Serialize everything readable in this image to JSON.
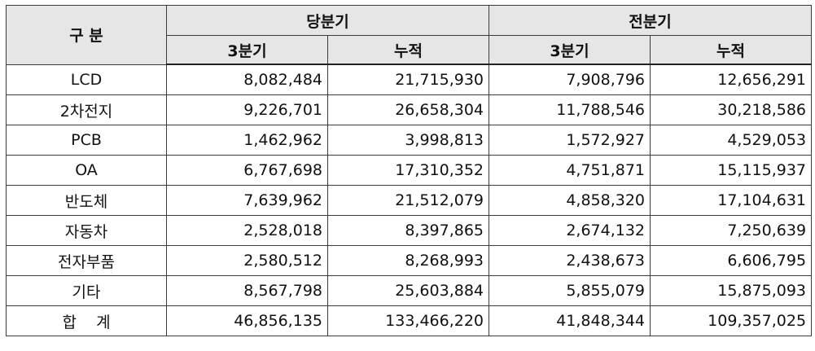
{
  "header": {
    "category": "구 분",
    "current_quarter": "당분기",
    "previous_quarter": "전분기",
    "sub_quarter": "3분기",
    "sub_cumulative": "누적"
  },
  "rows": [
    {
      "label": "LCD",
      "cur_q": "8,082,484",
      "cur_cum": "21,715,930",
      "prev_q": "7,908,796",
      "prev_cum": "12,656,291"
    },
    {
      "label": "2차전지",
      "cur_q": "9,226,701",
      "cur_cum": "26,658,304",
      "prev_q": "11,788,546",
      "prev_cum": "30,218,586"
    },
    {
      "label": "PCB",
      "cur_q": "1,462,962",
      "cur_cum": "3,998,813",
      "prev_q": "1,572,927",
      "prev_cum": "4,529,053"
    },
    {
      "label": "OA",
      "cur_q": "6,767,698",
      "cur_cum": "17,310,352",
      "prev_q": "4,751,871",
      "prev_cum": "15,115,937"
    },
    {
      "label": "반도체",
      "cur_q": "7,639,962",
      "cur_cum": "21,512,079",
      "prev_q": "4,858,320",
      "prev_cum": "17,104,631"
    },
    {
      "label": "자동차",
      "cur_q": "2,528,018",
      "cur_cum": "8,397,865",
      "prev_q": "2,674,132",
      "prev_cum": "7,250,639"
    },
    {
      "label": "전자부품",
      "cur_q": "2,580,512",
      "cur_cum": "8,268,993",
      "prev_q": "2,438,673",
      "prev_cum": "6,606,795"
    },
    {
      "label": "기타",
      "cur_q": "8,567,798",
      "cur_cum": "25,603,884",
      "prev_q": "5,855,079",
      "prev_cum": "15,875,093"
    },
    {
      "label": "합    계",
      "cur_q": "46,856,135",
      "cur_cum": "133,466,220",
      "prev_q": "41,848,344",
      "prev_cum": "109,357,025"
    }
  ]
}
